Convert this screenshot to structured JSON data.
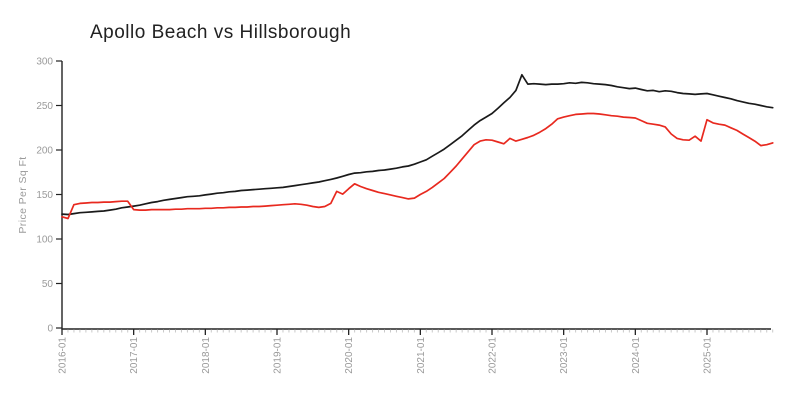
{
  "title": "Apollo Beach vs Hillsborough",
  "colors": {
    "series_black": "#1a1a1a",
    "series_red": "#e8291f",
    "axis": "#222222",
    "minor_tick": "#c9c9c9",
    "tick_label": "#9a9a9a",
    "background": "#ffffff"
  },
  "chart_data": {
    "type": "line",
    "title": "Apollo Beach vs Hillsborough",
    "xlabel": "",
    "ylabel": "Price Per Sq Ft",
    "ylim": [
      0,
      300
    ],
    "y_ticks": [
      0,
      50,
      100,
      150,
      200,
      250,
      300
    ],
    "x_major_tick_labels": [
      "2016-01",
      "2017-01",
      "2018-01",
      "2019-01",
      "2020-01",
      "2021-01",
      "2022-01",
      "2023-01",
      "2024-01",
      "2025-01"
    ],
    "x_minor_tick_interval": "month",
    "x_start": "2016-01",
    "x_step": "1 month",
    "grid": false,
    "legend_position": "none",
    "series": [
      {
        "name": "Apollo Beach",
        "color": "#1a1a1a",
        "values": [
          128,
          127.5,
          128.5,
          129.5,
          130,
          130.5,
          131,
          131.5,
          132.5,
          133.5,
          135,
          136,
          137,
          138,
          139.5,
          141,
          142,
          143.5,
          144.5,
          145.5,
          146.5,
          147.5,
          148,
          148.5,
          149.5,
          150.5,
          151.5,
          152,
          153,
          153.5,
          154.5,
          155,
          155.5,
          156,
          156.5,
          157,
          157.5,
          158,
          159,
          160,
          161,
          162,
          163,
          164,
          165.5,
          167,
          168.5,
          170.5,
          172.5,
          174,
          174.5,
          175.5,
          176,
          177,
          177.5,
          178.5,
          179.5,
          181,
          182,
          184,
          186.5,
          189,
          193,
          197,
          201,
          206,
          211,
          216,
          222,
          228,
          233,
          237,
          241,
          247,
          253,
          259,
          267,
          284.5,
          274,
          274.5,
          274,
          273.5,
          274,
          274,
          274.5,
          275.5,
          275,
          276,
          275.5,
          274.5,
          274,
          273.5,
          272.5,
          271,
          270,
          269,
          269.5,
          268,
          266.5,
          267,
          265.5,
          266.5,
          266,
          264.5,
          263.5,
          263,
          262.5,
          263,
          263.5,
          262,
          260.5,
          259,
          257.5,
          255.5,
          254,
          252.5,
          251.5,
          250,
          248.5,
          247.5
        ]
      },
      {
        "name": "Hillsborough",
        "color": "#e8291f",
        "values": [
          125,
          123,
          138.5,
          140,
          140.5,
          141,
          141,
          141.5,
          141.5,
          142,
          142.5,
          142.5,
          133,
          132.5,
          132.5,
          133,
          133,
          133,
          133,
          133.5,
          133.5,
          134,
          134,
          134,
          134.5,
          134.5,
          135,
          135,
          135.5,
          135.5,
          136,
          136,
          136.5,
          136.5,
          137,
          137.5,
          138,
          138.5,
          139,
          139.5,
          139,
          138,
          136.5,
          135.5,
          136.5,
          140,
          153.5,
          150.5,
          156.5,
          162,
          159,
          156.5,
          154.5,
          152.5,
          151,
          149.5,
          148,
          146.5,
          145,
          146,
          150,
          153.5,
          158,
          163,
          168,
          175,
          182,
          190,
          198,
          206,
          210,
          211.5,
          211,
          209,
          207,
          213,
          210,
          212,
          214,
          216.5,
          220,
          224,
          229,
          235,
          237,
          238.5,
          240,
          240.5,
          241,
          241,
          240.5,
          239.5,
          238.5,
          238,
          237,
          236.5,
          236,
          233,
          230,
          229,
          228,
          226,
          218,
          213,
          211.5,
          211,
          215.5,
          210,
          234,
          230.5,
          229,
          228,
          225,
          222,
          218,
          214,
          210,
          205,
          206,
          208
        ]
      }
    ]
  }
}
